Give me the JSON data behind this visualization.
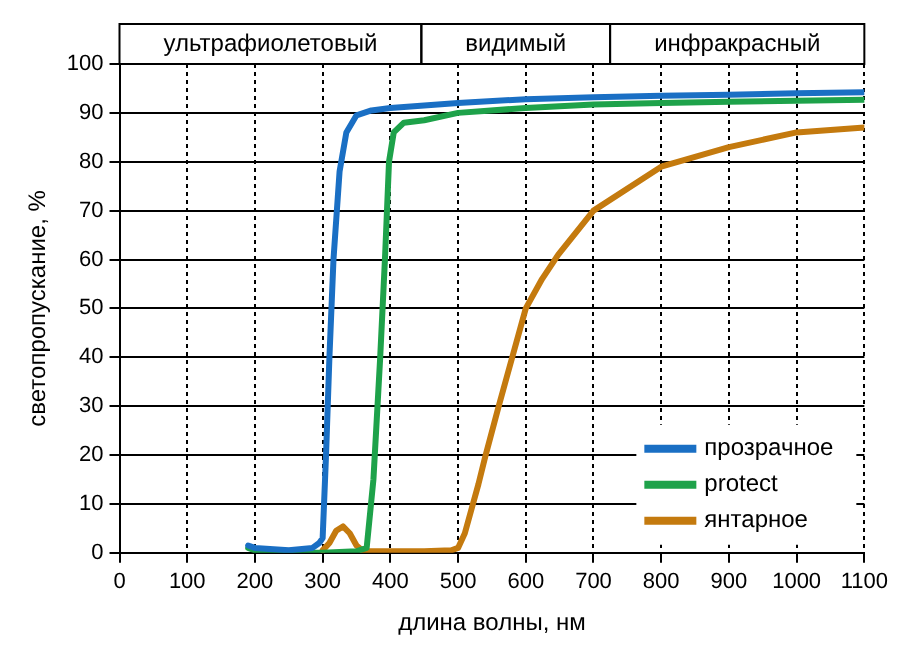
{
  "chart_data": {
    "type": "line",
    "xlabel": "длина волны, нм",
    "ylabel": "светопропускание, %",
    "xlim": [
      0,
      1100
    ],
    "xticks": [
      0,
      100,
      200,
      300,
      400,
      500,
      600,
      700,
      800,
      900,
      1000,
      1100
    ],
    "ylim": [
      0,
      100
    ],
    "yticks": [
      0,
      10,
      20,
      30,
      40,
      50,
      60,
      70,
      80,
      90,
      100
    ],
    "grid": true,
    "legend": "bottom right",
    "marker": "none",
    "line_style": "solid",
    "annotations": [
      "ультрафиолетовый",
      "видимый",
      "инфракрасный"
    ],
    "series": [
      {
        "name": "прозрачное",
        "color": "#1a6fc4",
        "x": [
          190,
          200,
          250,
          285,
          295,
          300,
          305,
          310,
          316,
          325,
          335,
          350,
          372,
          400,
          500,
          600,
          700,
          800,
          900,
          1000,
          1100
        ],
        "values": [
          1.5,
          1,
          0.5,
          1,
          2,
          3,
          20,
          40,
          60,
          78,
          86,
          89.5,
          90.5,
          91,
          92,
          92.8,
          93.2,
          93.5,
          93.7,
          94,
          94.2
        ]
      },
      {
        "name": "protect",
        "color": "#1ea24a",
        "x": [
          190,
          200,
          250,
          300,
          350,
          365,
          375,
          385,
          392,
          398,
          405,
          420,
          450,
          500,
          600,
          700,
          800,
          900,
          1000,
          1100
        ],
        "values": [
          1,
          0.5,
          0,
          0,
          0.3,
          1,
          15,
          40,
          60,
          80,
          86,
          88,
          88.5,
          90,
          91,
          91.7,
          92,
          92.3,
          92.5,
          92.7
        ]
      },
      {
        "name": "янтарное",
        "color": "#c47a0e",
        "x": [
          300,
          310,
          320,
          330,
          340,
          350,
          360,
          400,
          450,
          490,
          500,
          510,
          520,
          530,
          540,
          560,
          580,
          600,
          624,
          648,
          700,
          800,
          900,
          1000,
          1100
        ],
        "values": [
          0.5,
          2,
          4.5,
          5.4,
          4,
          1.5,
          0.3,
          0.3,
          0.3,
          0.5,
          1,
          4,
          9,
          14,
          19.6,
          30,
          40,
          50,
          56,
          61,
          70,
          79,
          83,
          86,
          87
        ]
      }
    ]
  }
}
